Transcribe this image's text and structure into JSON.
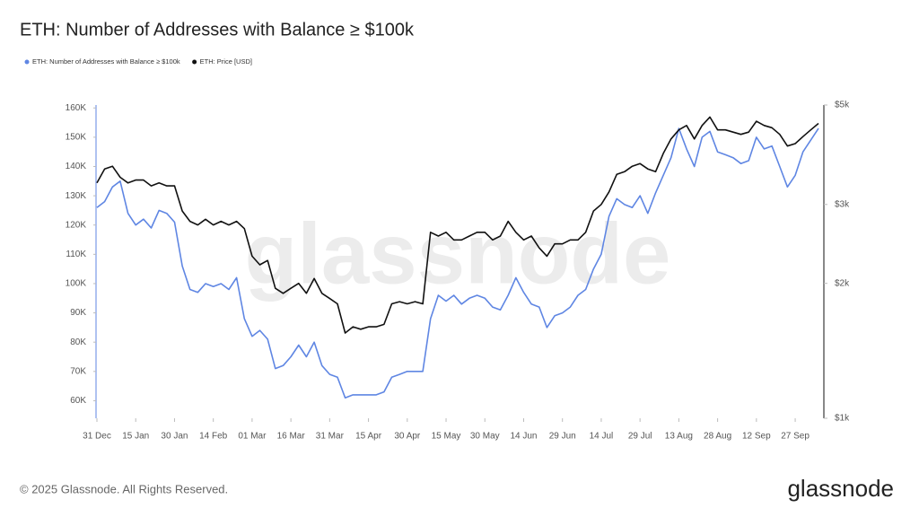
{
  "chart_data": {
    "type": "line",
    "title": "ETH: Number of Addresses with Balance ≥ $100k",
    "watermark": "glassnode",
    "footer": "© 2025 Glassnode. All Rights Reserved.",
    "logo": "glassnode",
    "x": [
      "31 Dec",
      null,
      null,
      null,
      null,
      "15 Jan",
      null,
      null,
      null,
      null,
      "30 Jan",
      null,
      null,
      null,
      null,
      "14 Feb",
      null,
      null,
      null,
      null,
      "01 Mar",
      null,
      null,
      null,
      null,
      "16 Mar",
      null,
      null,
      null,
      null,
      "31 Mar",
      null,
      null,
      null,
      null,
      "15 Apr",
      null,
      null,
      null,
      null,
      "30 Apr",
      null,
      null,
      null,
      null,
      "15 May",
      null,
      null,
      null,
      null,
      "30 May",
      null,
      null,
      null,
      null,
      "14 Jun",
      null,
      null,
      null,
      null,
      "29 Jun",
      null,
      null,
      null,
      null,
      "14 Jul",
      null,
      null,
      null,
      null,
      "29 Jul",
      null,
      null,
      null,
      null,
      "13 Aug",
      null,
      null,
      null,
      null,
      "28 Aug",
      null,
      null,
      null,
      null,
      "12 Sep",
      null,
      null,
      null,
      null,
      "27 Sep",
      null,
      null,
      null
    ],
    "ylim": [
      54000,
      161000
    ],
    "yticks": [
      {
        "value": 60000,
        "label": "60K"
      },
      {
        "value": 70000,
        "label": "70K"
      },
      {
        "value": 80000,
        "label": "80K"
      },
      {
        "value": 90000,
        "label": "90K"
      },
      {
        "value": 100000,
        "label": "100K"
      },
      {
        "value": 110000,
        "label": "110K"
      },
      {
        "value": 120000,
        "label": "120K"
      },
      {
        "value": 130000,
        "label": "130K"
      },
      {
        "value": 140000,
        "label": "140K"
      },
      {
        "value": 150000,
        "label": "150K"
      },
      {
        "value": 160000,
        "label": "160K"
      }
    ],
    "y2lim": [
      1000,
      5000
    ],
    "y2scale": "log",
    "y2ticks": [
      {
        "value": 1000,
        "label": "$1k"
      },
      {
        "value": 2000,
        "label": "$2k"
      },
      {
        "value": 3000,
        "label": "$3k"
      },
      {
        "value": 5000,
        "label": "$5k"
      }
    ],
    "grid": false,
    "legend": "top-left",
    "series": [
      {
        "name": "ETH: Number of Addresses with Balance ≥ $100k",
        "color": "#5f86e3",
        "axis": "y",
        "values": [
          126000,
          128000,
          133000,
          135000,
          124000,
          120000,
          122000,
          119000,
          125000,
          124000,
          121000,
          106000,
          98000,
          97000,
          100000,
          99000,
          100000,
          98000,
          102000,
          88000,
          82000,
          84000,
          81000,
          71000,
          72000,
          75000,
          79000,
          75000,
          80000,
          72000,
          69000,
          68000,
          61000,
          62000,
          62000,
          62000,
          62000,
          63000,
          68000,
          69000,
          70000,
          70000,
          70000,
          88000,
          96000,
          94000,
          96000,
          93000,
          95000,
          96000,
          95000,
          92000,
          91000,
          96000,
          102000,
          97000,
          93000,
          92000,
          85000,
          89000,
          90000,
          92000,
          96000,
          98000,
          105000,
          110000,
          123000,
          129000,
          127000,
          126000,
          130000,
          124000,
          131000,
          137000,
          143000,
          153000,
          146000,
          140000,
          150000,
          152000,
          145000,
          144000,
          143000,
          141000,
          142000,
          150000,
          146000,
          147000,
          140000,
          133000,
          137000,
          145000,
          149000,
          153000
        ]
      },
      {
        "name": "ETH: Price [USD]",
        "color": "#111111",
        "axis": "y2",
        "values": [
          3350,
          3600,
          3650,
          3450,
          3350,
          3400,
          3400,
          3300,
          3350,
          3300,
          3300,
          2900,
          2750,
          2700,
          2780,
          2700,
          2750,
          2700,
          2750,
          2650,
          2300,
          2200,
          2250,
          1950,
          1900,
          1950,
          2000,
          1900,
          2050,
          1900,
          1850,
          1800,
          1550,
          1600,
          1580,
          1600,
          1600,
          1620,
          1800,
          1820,
          1800,
          1820,
          1800,
          2600,
          2550,
          2600,
          2500,
          2500,
          2550,
          2600,
          2600,
          2500,
          2550,
          2750,
          2600,
          2500,
          2550,
          2400,
          2300,
          2450,
          2450,
          2500,
          2500,
          2600,
          2900,
          3000,
          3200,
          3500,
          3550,
          3650,
          3700,
          3600,
          3550,
          3900,
          4200,
          4400,
          4500,
          4200,
          4500,
          4700,
          4400,
          4400,
          4350,
          4300,
          4350,
          4600,
          4500,
          4450,
          4300,
          4050,
          4100,
          4250,
          4400,
          4550
        ]
      }
    ]
  }
}
